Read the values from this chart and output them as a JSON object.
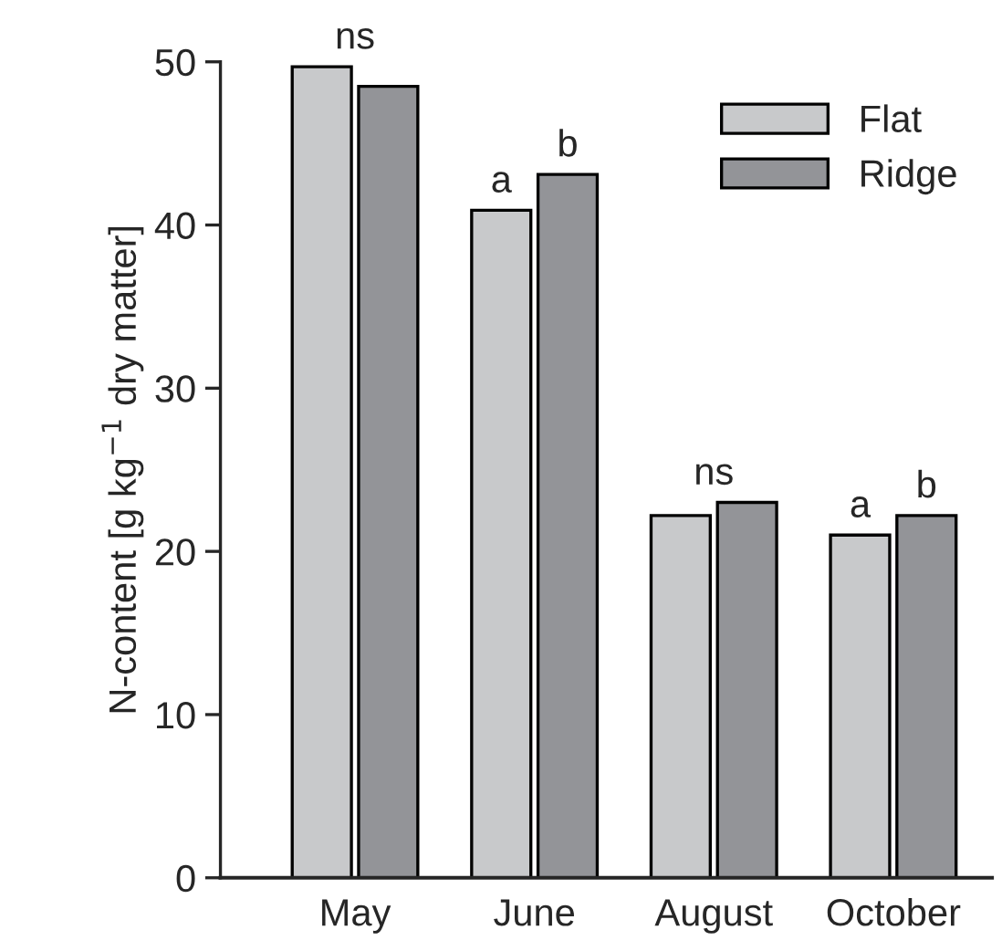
{
  "chart_data": {
    "type": "bar",
    "ylabel": "N-content [g kg$^{−1}$ dry matter]",
    "categories": [
      "May",
      "June",
      "August",
      "October"
    ],
    "series": [
      {
        "name": "Flat",
        "color": "#c8c9cb",
        "values": [
          49.7,
          40.9,
          22.2,
          21.0
        ],
        "value_labels": [
          null,
          "a",
          null,
          "a"
        ]
      },
      {
        "name": "Ridge",
        "color": "#939498",
        "values": [
          48.5,
          43.1,
          23.0,
          22.2
        ],
        "value_labels": [
          null,
          "b",
          null,
          "b"
        ]
      }
    ],
    "annotations": [
      {
        "text": "ns",
        "x": "May",
        "y": 49.7
      },
      {
        "text": "ns",
        "x": "August",
        "y": 23.0
      }
    ],
    "ylim": [
      0,
      50
    ],
    "yticks": [
      0,
      10,
      20,
      30,
      40,
      50
    ],
    "grid": false,
    "legend": "top right"
  }
}
